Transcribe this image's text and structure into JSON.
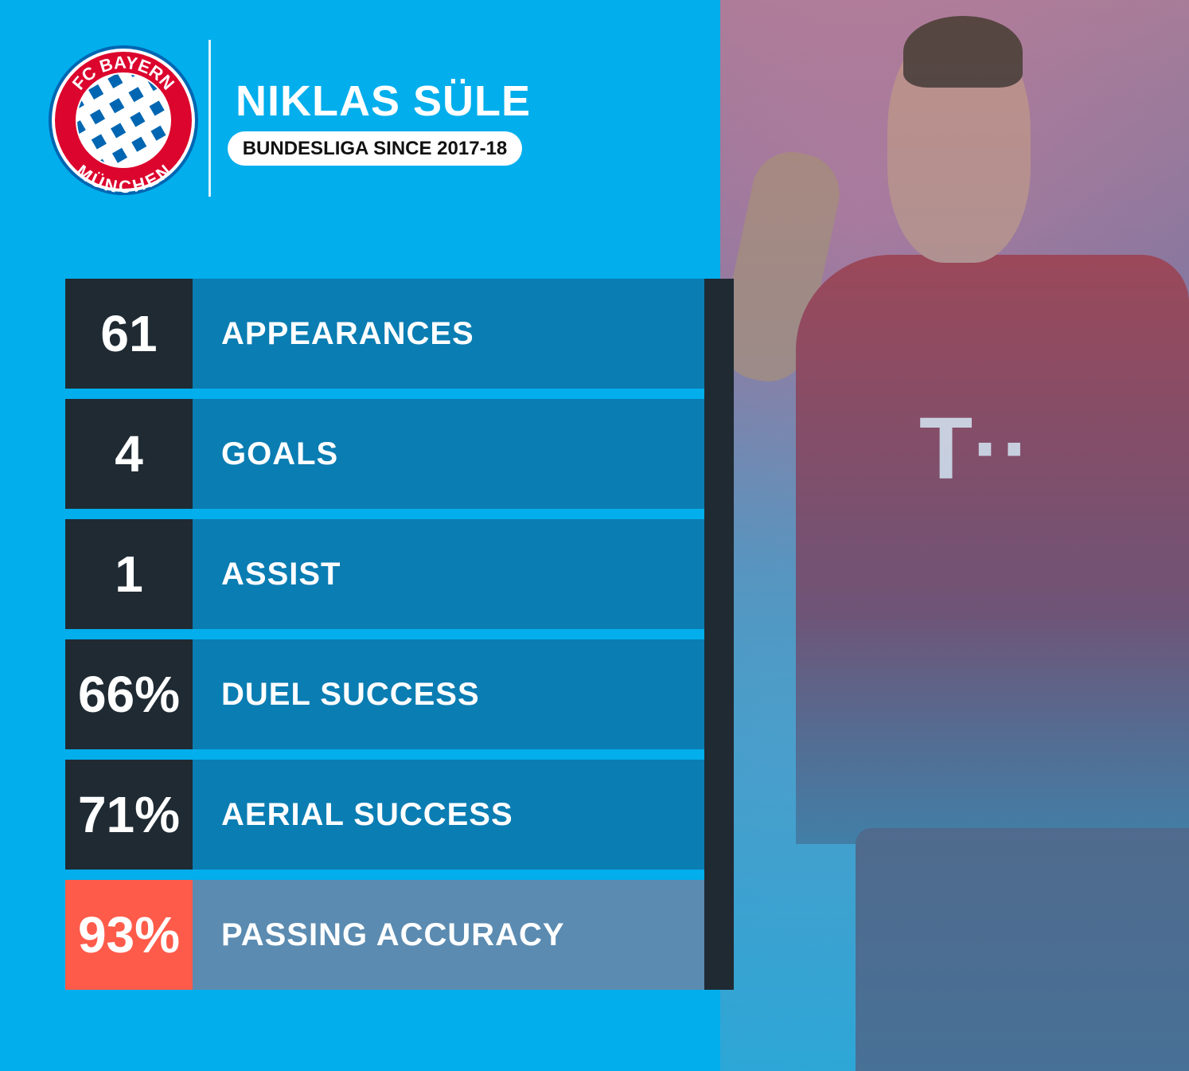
{
  "header": {
    "player_name": "NIKLAS SÜLE",
    "subtitle": "BUNDESLIGA SINCE 2017-18",
    "club_logo_text": "FC BAYERN MÜNCHEN"
  },
  "stats": [
    {
      "value": "61",
      "label": "APPEARANCES"
    },
    {
      "value": "4",
      "label": "GOALS"
    },
    {
      "value": "1",
      "label": "ASSIST"
    },
    {
      "value": "66%",
      "label": "DUEL SUCCESS"
    },
    {
      "value": "71%",
      "label": "AERIAL SUCCESS"
    },
    {
      "value": "93%",
      "label": "PASSING ACCURACY",
      "highlight": true
    }
  ],
  "colors": {
    "background": "#02aeec",
    "value_box": "#1f2a33",
    "label_box": "#0a7db3",
    "highlight_value": "#ff5b4b",
    "highlight_label": "#5b8bb0",
    "club_red": "#dc052d",
    "club_blue": "#0066b2"
  }
}
